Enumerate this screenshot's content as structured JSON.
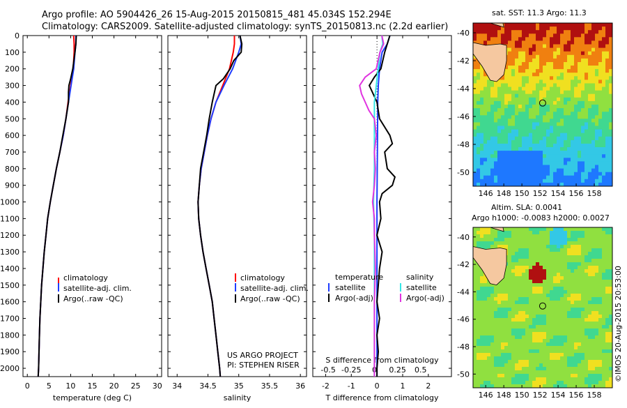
{
  "header": {
    "line1": "Argo profile: AO 5904426_26 15-Aug-2015 20150815_481 45.034S 152.294E",
    "line2": "Climatology: CARS2009. Satellite-adjusted climatology: synTS_20150813.nc (2.2d earlier)"
  },
  "credits": {
    "project": "US ARGO PROJECT",
    "pi": "PI: STEPHEN RISER",
    "imos": "©IMOS 20-Aug-2015 20:53:00"
  },
  "maps": {
    "sst_title": "sat. SST: 11.3 Argo: 11.3",
    "sla_title1": "Altim. SLA: 0.0041",
    "sla_title2": "Argo h1000: -0.0083 h2000: 0.0027",
    "lon_ticks": [
      "146",
      "148",
      "150",
      "152",
      "154",
      "156",
      "158"
    ],
    "lat_ticks": [
      "-40",
      "-42",
      "-44",
      "-46",
      "-48",
      "-50"
    ],
    "lon_range": [
      144.6,
      160.0
    ],
    "lat_range": [
      -51.0,
      -39.3
    ],
    "float_lon": 152.294,
    "float_lat": -45.034
  },
  "legends": {
    "temp": [
      "climatology",
      "satellite-adj. clim.",
      "Argo(..raw -QC)"
    ],
    "sal": [
      "climatology",
      "satellite-adj. clim.",
      "Argo(..raw -QC)"
    ],
    "diff_temperature_header": "temperature",
    "diff_salinity_header": "salinity",
    "diff_temperature": [
      "satellite",
      "Argo(-adj)"
    ],
    "diff_salinity": [
      "satellite",
      "Argo(-adj)"
    ]
  },
  "colors": {
    "climatology": "#ff0000",
    "satellite": "#1e3cff",
    "argo": "#000000",
    "s_satellite": "#33e6e6",
    "s_argo": "#e033e0"
  },
  "chart_data": [
    {
      "type": "line",
      "panel": "temperature",
      "xlabel": "temperature (deg C)",
      "ylabel": "",
      "xlim": [
        -1,
        31
      ],
      "ylim": [
        2050,
        0
      ],
      "x_ticks": [
        "0",
        "5",
        "10",
        "15",
        "20",
        "25",
        "30"
      ],
      "y_ticks": [
        "0",
        "100",
        "200",
        "300",
        "400",
        "500",
        "600",
        "700",
        "800",
        "900",
        "1000",
        "1100",
        "1200",
        "1300",
        "1400",
        "1500",
        "1600",
        "1700",
        "1800",
        "1900",
        "2000"
      ],
      "series": [
        {
          "name": "climatology",
          "depth": [
            0,
            50,
            100,
            200,
            300,
            400,
            500,
            600,
            700,
            800,
            900,
            1000,
            1100,
            1200,
            1300,
            1400,
            1500,
            1600,
            1700,
            1800,
            1900,
            2000,
            2050
          ],
          "values": [
            10.7,
            10.8,
            10.8,
            10.6,
            10.0,
            9.4,
            8.9,
            8.3,
            7.5,
            6.7,
            6.0,
            5.3,
            4.7,
            4.3,
            3.9,
            3.6,
            3.3,
            3.1,
            2.9,
            2.8,
            2.7,
            2.6,
            2.5
          ]
        },
        {
          "name": "satellite-adj. clim.",
          "depth": [
            0,
            50,
            100,
            200,
            300,
            400,
            500,
            600,
            700,
            800,
            900,
            1000,
            1100,
            1200,
            1300,
            1400,
            1500,
            1600,
            1700,
            1800,
            1900,
            2000,
            2050
          ],
          "values": [
            11.2,
            11.2,
            11.0,
            10.7,
            10.1,
            9.5,
            8.9,
            8.3,
            7.5,
            6.7,
            6.0,
            5.3,
            4.7,
            4.3,
            3.9,
            3.6,
            3.3,
            3.1,
            2.9,
            2.8,
            2.7,
            2.6,
            2.5
          ]
        },
        {
          "name": "Argo(..raw -QC)",
          "depth": [
            0,
            50,
            100,
            200,
            260,
            300,
            340,
            400,
            500,
            600,
            700,
            800,
            900,
            1000,
            1100,
            1200,
            1300,
            1400,
            1500,
            1600,
            1700,
            1800,
            1900,
            2000,
            2050
          ],
          "values": [
            11.3,
            11.2,
            11.0,
            10.5,
            10.0,
            9.6,
            9.5,
            9.5,
            8.9,
            8.2,
            7.5,
            6.7,
            6.0,
            5.3,
            4.7,
            4.3,
            3.9,
            3.6,
            3.3,
            3.1,
            2.9,
            2.8,
            2.7,
            2.6,
            2.5
          ]
        }
      ]
    },
    {
      "type": "line",
      "panel": "salinity",
      "xlabel": "salinity",
      "ylabel": "",
      "xlim": [
        33.85,
        36.1
      ],
      "ylim": [
        2050,
        0
      ],
      "x_ticks": [
        "34",
        "34.5",
        "35",
        "35.5",
        "36"
      ],
      "series": [
        {
          "name": "climatology",
          "depth": [
            0,
            50,
            100,
            200,
            300,
            400,
            500,
            600,
            700,
            800,
            900,
            1000,
            1100,
            1200,
            1300,
            1400,
            1500,
            1600,
            1700,
            1800,
            1900,
            2000,
            2050
          ],
          "values": [
            34.93,
            34.93,
            34.91,
            34.85,
            34.74,
            34.63,
            34.55,
            34.49,
            34.44,
            34.39,
            34.36,
            34.34,
            34.35,
            34.38,
            34.42,
            34.47,
            34.52,
            34.57,
            34.6,
            34.63,
            34.66,
            34.69,
            34.7
          ]
        },
        {
          "name": "satellite-adj. clim.",
          "depth": [
            0,
            50,
            100,
            200,
            300,
            400,
            500,
            600,
            700,
            800,
            900,
            1000,
            1100,
            1200,
            1300,
            1400,
            1500,
            1600,
            1700,
            1800,
            1900,
            2000,
            2050
          ],
          "values": [
            35.02,
            35.04,
            35.0,
            34.9,
            34.76,
            34.63,
            34.55,
            34.49,
            34.44,
            34.39,
            34.36,
            34.34,
            34.35,
            34.38,
            34.42,
            34.47,
            34.52,
            34.57,
            34.6,
            34.63,
            34.66,
            34.69,
            34.7
          ]
        },
        {
          "name": "Argo(..raw -QC)",
          "depth": [
            0,
            50,
            100,
            150,
            200,
            260,
            300,
            400,
            500,
            600,
            700,
            800,
            900,
            1000,
            1100,
            1200,
            1300,
            1400,
            1500,
            1600,
            1700,
            1800,
            1900,
            2000,
            2050
          ],
          "values": [
            35.02,
            35.05,
            35.04,
            34.92,
            34.86,
            34.75,
            34.63,
            34.57,
            34.52,
            34.48,
            34.43,
            34.38,
            34.36,
            34.34,
            34.35,
            34.38,
            34.42,
            34.47,
            34.52,
            34.57,
            34.6,
            34.63,
            34.66,
            34.69,
            34.7
          ]
        }
      ]
    },
    {
      "type": "line",
      "panel": "difference",
      "xlabel": "T difference from climatology",
      "x2label": "S difference from climatology",
      "xlim": [
        -2.5,
        2.9
      ],
      "ylim": [
        2050,
        0
      ],
      "x_ticks": [
        "-2",
        "-1",
        "0",
        "1",
        "2"
      ],
      "x2_ticks": [
        "-0.5",
        "-0.25",
        "0",
        "0.25",
        "0.5"
      ],
      "series": [
        {
          "name": "T satellite",
          "depth": [
            0,
            50,
            100,
            200,
            300,
            400,
            600,
            800,
            1000,
            1200,
            1500,
            1800,
            2050
          ],
          "values": [
            0.5,
            0.4,
            0.2,
            0.1,
            0.05,
            0.03,
            0.02,
            0.01,
            0.0,
            0.0,
            0.0,
            0.0,
            0.0
          ]
        },
        {
          "name": "T Argo(-adj)",
          "depth": [
            0,
            50,
            100,
            200,
            250,
            300,
            400,
            500,
            600,
            650,
            700,
            800,
            850,
            900,
            950,
            1000,
            1100,
            1200,
            1300,
            1400,
            1500,
            1600,
            1700,
            1800,
            1900,
            2000,
            2050
          ],
          "values": [
            0.5,
            0.4,
            0.3,
            0.15,
            -0.1,
            -0.3,
            0.0,
            0.1,
            0.5,
            0.6,
            0.3,
            0.4,
            0.7,
            0.6,
            0.2,
            0.1,
            0.15,
            0.0,
            0.2,
            0.1,
            0.05,
            0.0,
            0.1,
            0.0,
            0.05,
            0.0,
            0.0
          ]
        },
        {
          "name": "S satellite",
          "depth": [
            0,
            50,
            100,
            200,
            300,
            400,
            600,
            800,
            1000,
            1200,
            1500,
            1800,
            2050
          ],
          "values": [
            0.08,
            0.09,
            0.06,
            0.04,
            0.02,
            0.0,
            0.0,
            0.0,
            -0.01,
            0.0,
            0.0,
            0.0,
            0.0
          ]
        },
        {
          "name": "S Argo(-adj)",
          "depth": [
            0,
            50,
            100,
            200,
            250,
            300,
            350,
            400,
            450,
            500,
            600,
            700,
            800,
            900,
            950,
            1000,
            1100,
            1200,
            1400,
            1600,
            1800,
            2000,
            2050
          ],
          "values": [
            0.08,
            0.1,
            0.06,
            0.02,
            -0.1,
            -0.16,
            -0.14,
            -0.1,
            -0.06,
            0.0,
            0.02,
            0.0,
            0.01,
            0.0,
            -0.01,
            -0.02,
            0.0,
            0.0,
            0.01,
            0.0,
            0.0,
            0.0,
            0.0
          ]
        }
      ]
    }
  ]
}
